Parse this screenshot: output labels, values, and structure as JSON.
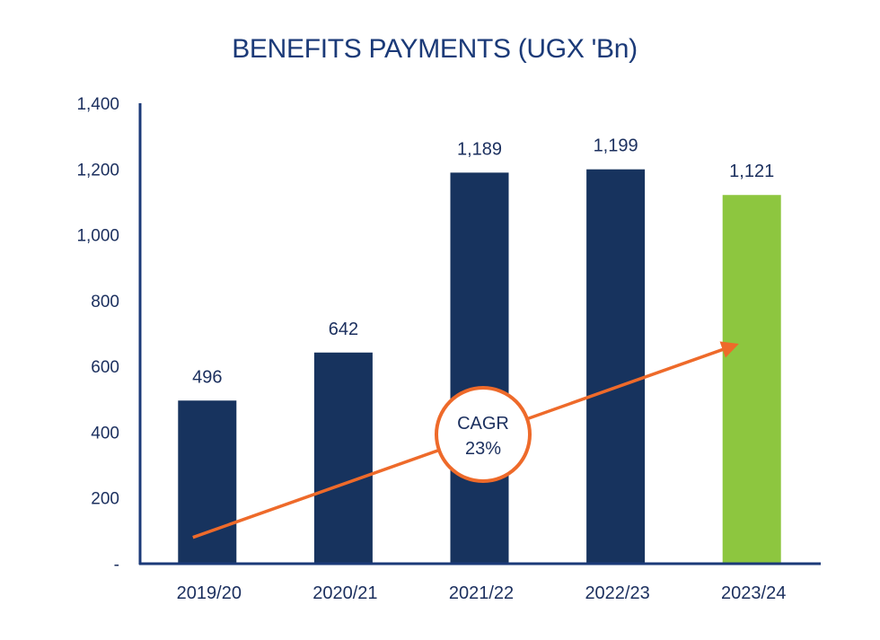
{
  "chart_data": {
    "type": "bar",
    "title": "BENEFITS PAYMENTS (UGX 'Bn)",
    "xlabel": "",
    "ylabel": "",
    "ylim": [
      0,
      1400
    ],
    "yticks": [
      0,
      200,
      400,
      600,
      800,
      1000,
      1200,
      1400
    ],
    "ytick_labels": [
      "-",
      "200",
      "400",
      "600",
      "800",
      "1,000",
      "1,200",
      "1,400"
    ],
    "categories": [
      "2019/20",
      "2020/21",
      "2021/22",
      "2022/23",
      "2023/24"
    ],
    "values": [
      496,
      642,
      1189,
      1199,
      1121
    ],
    "value_labels": [
      "496",
      "642",
      "1,189",
      "1,199",
      "1,121"
    ],
    "bar_colors": [
      "#17335e",
      "#17335e",
      "#17335e",
      "#17335e",
      "#8dc63f"
    ],
    "grid": false,
    "legend": "none",
    "annotation": {
      "line1": "CAGR",
      "line2": "23%",
      "arrow_color": "#ee6a2a",
      "arrow_from_value": 80,
      "arrow_to_value": 665
    },
    "axis_color": "#1b3a78"
  }
}
